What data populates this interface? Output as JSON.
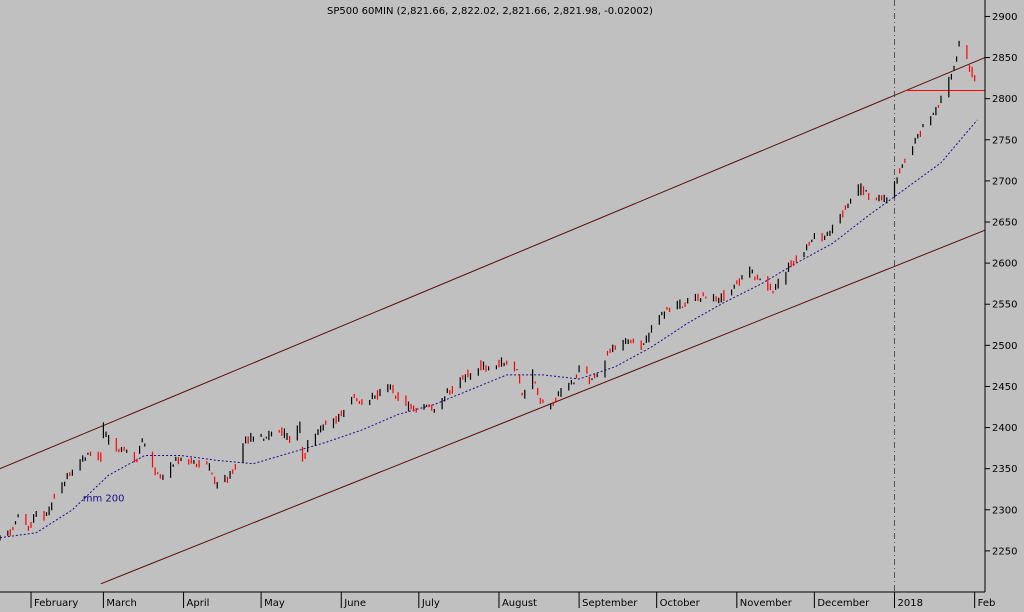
{
  "header": {
    "title": "SP500 60MIN (2,821.66, 2,822.02, 2,821.66, 2,821.98, -0.02002)"
  },
  "colors": {
    "background": "#c0c0c0",
    "up_bar": "#000000",
    "down_bar": "#ff0000",
    "ma_line": "#1a0d8c",
    "channel": "#5a0b0b",
    "resistance": "#ff0000",
    "separator": "#555555"
  },
  "chart_data": {
    "type": "line",
    "title": "SP500 60MIN (2,821.66, 2,822.02, 2,821.66, 2,821.98, -0.02002)",
    "xlabel": "",
    "ylabel": "",
    "ylim": [
      2200,
      2920
    ],
    "xlim": [
      "2017-01-20",
      "2018-02-05"
    ],
    "grid": false,
    "y_ticks": [
      2250,
      2300,
      2350,
      2400,
      2450,
      2500,
      2550,
      2600,
      2650,
      2700,
      2750,
      2800,
      2850,
      2900
    ],
    "x_ticks": [
      {
        "label": "February",
        "date": "2017-02-01"
      },
      {
        "label": "March",
        "date": "2017-03-01"
      },
      {
        "label": "April",
        "date": "2017-04-01"
      },
      {
        "label": "May",
        "date": "2017-05-01"
      },
      {
        "label": "June",
        "date": "2017-06-01"
      },
      {
        "label": "July",
        "date": "2017-07-01"
      },
      {
        "label": "August",
        "date": "2017-08-01"
      },
      {
        "label": "September",
        "date": "2017-09-01"
      },
      {
        "label": "October",
        "date": "2017-10-01"
      },
      {
        "label": "November",
        "date": "2017-11-01"
      },
      {
        "label": "December",
        "date": "2017-12-01"
      },
      {
        "label": "2018",
        "date": "2018-01-01"
      },
      {
        "label": "Feb",
        "date": "2018-02-01"
      }
    ],
    "series": [
      {
        "name": "SP500 60MIN",
        "kind": "price",
        "points": [
          [
            "2017-01-20",
            2266
          ],
          [
            "2017-01-24",
            2272
          ],
          [
            "2017-01-27",
            2296
          ],
          [
            "2017-01-31",
            2278
          ],
          [
            "2017-02-03",
            2294
          ],
          [
            "2017-02-07",
            2292
          ],
          [
            "2017-02-10",
            2316
          ],
          [
            "2017-02-14",
            2336
          ],
          [
            "2017-02-17",
            2350
          ],
          [
            "2017-02-21",
            2364
          ],
          [
            "2017-02-24",
            2367
          ],
          [
            "2017-02-28",
            2364
          ],
          [
            "2017-03-01",
            2398
          ],
          [
            "2017-03-03",
            2383
          ],
          [
            "2017-03-07",
            2370
          ],
          [
            "2017-03-10",
            2372
          ],
          [
            "2017-03-14",
            2362
          ],
          [
            "2017-03-16",
            2383
          ],
          [
            "2017-03-21",
            2345
          ],
          [
            "2017-03-24",
            2342
          ],
          [
            "2017-03-28",
            2358
          ],
          [
            "2017-03-31",
            2362
          ],
          [
            "2017-04-04",
            2358
          ],
          [
            "2017-04-07",
            2355
          ],
          [
            "2017-04-11",
            2352
          ],
          [
            "2017-04-13",
            2330
          ],
          [
            "2017-04-18",
            2338
          ],
          [
            "2017-04-21",
            2350
          ],
          [
            "2017-04-25",
            2385
          ],
          [
            "2017-04-28",
            2388
          ],
          [
            "2017-05-03",
            2390
          ],
          [
            "2017-05-08",
            2398
          ],
          [
            "2017-05-12",
            2388
          ],
          [
            "2017-05-16",
            2400
          ],
          [
            "2017-05-17",
            2357
          ],
          [
            "2017-05-19",
            2380
          ],
          [
            "2017-05-24",
            2400
          ],
          [
            "2017-05-31",
            2412
          ],
          [
            "2017-06-05",
            2438
          ],
          [
            "2017-06-09",
            2430
          ],
          [
            "2017-06-14",
            2438
          ],
          [
            "2017-06-19",
            2452
          ],
          [
            "2017-06-23",
            2436
          ],
          [
            "2017-06-29",
            2420
          ],
          [
            "2017-07-03",
            2430
          ],
          [
            "2017-07-07",
            2422
          ],
          [
            "2017-07-12",
            2442
          ],
          [
            "2017-07-18",
            2460
          ],
          [
            "2017-07-25",
            2476
          ],
          [
            "2017-07-28",
            2470
          ],
          [
            "2017-08-02",
            2478
          ],
          [
            "2017-08-08",
            2474
          ],
          [
            "2017-08-10",
            2436
          ],
          [
            "2017-08-14",
            2466
          ],
          [
            "2017-08-17",
            2428
          ],
          [
            "2017-08-21",
            2424
          ],
          [
            "2017-08-25",
            2444
          ],
          [
            "2017-08-30",
            2456
          ],
          [
            "2017-09-01",
            2474
          ],
          [
            "2017-09-05",
            2458
          ],
          [
            "2017-09-08",
            2462
          ],
          [
            "2017-09-12",
            2490
          ],
          [
            "2017-09-19",
            2506
          ],
          [
            "2017-09-25",
            2496
          ],
          [
            "2017-09-29",
            2518
          ],
          [
            "2017-10-05",
            2544
          ],
          [
            "2017-10-12",
            2552
          ],
          [
            "2017-10-18",
            2560
          ],
          [
            "2017-10-25",
            2556
          ],
          [
            "2017-10-31",
            2574
          ],
          [
            "2017-11-06",
            2590
          ],
          [
            "2017-11-10",
            2580
          ],
          [
            "2017-11-15",
            2568
          ],
          [
            "2017-11-21",
            2596
          ],
          [
            "2017-11-28",
            2618
          ],
          [
            "2017-12-01",
            2632
          ],
          [
            "2017-12-05",
            2630
          ],
          [
            "2017-12-12",
            2662
          ],
          [
            "2017-12-18",
            2692
          ],
          [
            "2017-12-22",
            2682
          ],
          [
            "2017-12-29",
            2676
          ],
          [
            "2018-01-03",
            2710
          ],
          [
            "2018-01-09",
            2752
          ],
          [
            "2018-01-16",
            2782
          ],
          [
            "2018-01-22",
            2820
          ],
          [
            "2018-01-26",
            2866
          ],
          [
            "2018-01-29",
            2846
          ],
          [
            "2018-01-31",
            2830
          ],
          [
            "2018-02-02",
            2822
          ]
        ]
      },
      {
        "name": "mm 200",
        "kind": "moving_average",
        "points": [
          [
            "2017-01-20",
            2266
          ],
          [
            "2017-02-03",
            2272
          ],
          [
            "2017-02-17",
            2300
          ],
          [
            "2017-03-03",
            2342
          ],
          [
            "2017-03-17",
            2366
          ],
          [
            "2017-03-31",
            2366
          ],
          [
            "2017-04-14",
            2360
          ],
          [
            "2017-04-28",
            2356
          ],
          [
            "2017-05-12",
            2369
          ],
          [
            "2017-05-26",
            2382
          ],
          [
            "2017-06-09",
            2397
          ],
          [
            "2017-06-23",
            2416
          ],
          [
            "2017-07-07",
            2428
          ],
          [
            "2017-07-21",
            2446
          ],
          [
            "2017-08-04",
            2464
          ],
          [
            "2017-08-18",
            2464
          ],
          [
            "2017-09-01",
            2459
          ],
          [
            "2017-09-15",
            2474
          ],
          [
            "2017-09-29",
            2498
          ],
          [
            "2017-10-13",
            2527
          ],
          [
            "2017-10-27",
            2552
          ],
          [
            "2017-11-10",
            2574
          ],
          [
            "2017-11-24",
            2600
          ],
          [
            "2017-12-08",
            2624
          ],
          [
            "2017-12-22",
            2658
          ],
          [
            "2018-01-05",
            2690
          ],
          [
            "2018-01-19",
            2722
          ],
          [
            "2018-02-02",
            2774
          ]
        ]
      }
    ],
    "trendlines": [
      {
        "kind": "channel_upper",
        "from": [
          "2017-01-20",
          2350
        ],
        "to": [
          "2018-02-05",
          2850
        ]
      },
      {
        "kind": "channel_lower",
        "from": [
          "2017-02-28",
          2210
        ],
        "to": [
          "2018-02-05",
          2640
        ]
      },
      {
        "kind": "resistance",
        "from": [
          "2018-01-05",
          2810
        ],
        "to": [
          "2018-02-05",
          2810
        ]
      }
    ],
    "vertical_marker": "2018-01-01",
    "annotations": [
      {
        "text": "mm 200",
        "x": "2017-02-21",
        "y": 2310
      }
    ]
  }
}
